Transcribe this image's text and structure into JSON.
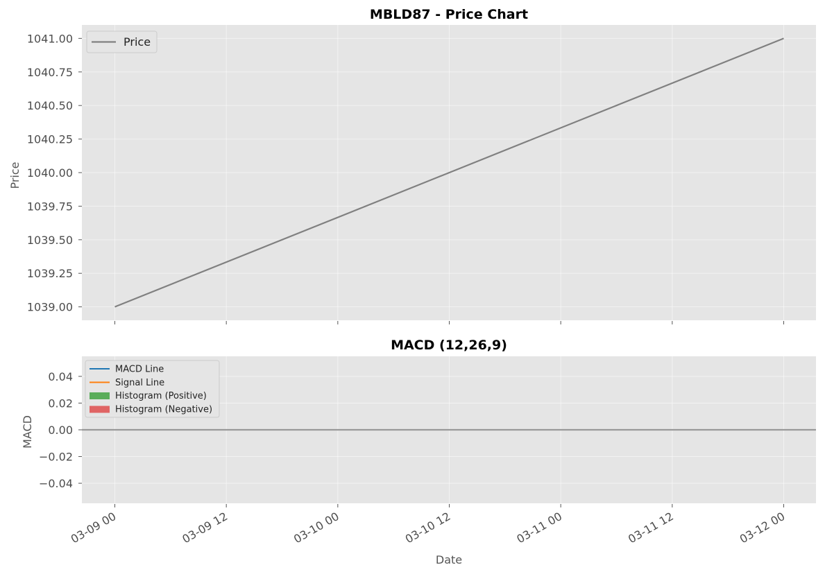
{
  "chart_data": [
    {
      "type": "line",
      "title": "MBLD87 - Price Chart",
      "xlabel": "",
      "ylabel": "Price",
      "ylim": [
        1038.9,
        1041.1
      ],
      "yticks": [
        "1039.00",
        "1039.25",
        "1039.50",
        "1039.75",
        "1040.00",
        "1040.25",
        "1040.50",
        "1040.75",
        "1041.00"
      ],
      "grid": true,
      "legend_position": "top-left",
      "x": [
        "03-09 00",
        "03-12 00"
      ],
      "series": [
        {
          "name": "Price",
          "color": "#808080",
          "values": [
            1039.0,
            1041.0
          ]
        }
      ]
    },
    {
      "type": "line",
      "title": "MACD (12,26,9)",
      "xlabel": "Date",
      "ylabel": "MACD",
      "ylim": [
        -0.055,
        0.055
      ],
      "yticks": [
        "0.04",
        "0.02",
        "0.00",
        "−0.02",
        "−0.04"
      ],
      "xticks": [
        "03-09 00",
        "03-09 12",
        "03-10 00",
        "03-10 12",
        "03-11 00",
        "03-11 12",
        "03-12 00"
      ],
      "grid": true,
      "legend_position": "top-left",
      "x": [
        "03-09 00",
        "03-12 00"
      ],
      "series": [
        {
          "name": "MACD Line",
          "color": "#1f77b4",
          "values": [
            0,
            0
          ]
        },
        {
          "name": "Signal Line",
          "color": "#ff7f0e",
          "values": [
            0,
            0
          ]
        }
      ],
      "histogram": [
        {
          "name": "Histogram (Positive)",
          "color": "#5aad5a"
        },
        {
          "name": "Histogram (Negative)",
          "color": "#e06464"
        }
      ],
      "reference_line": {
        "value": 0,
        "color": "#999999"
      }
    }
  ]
}
